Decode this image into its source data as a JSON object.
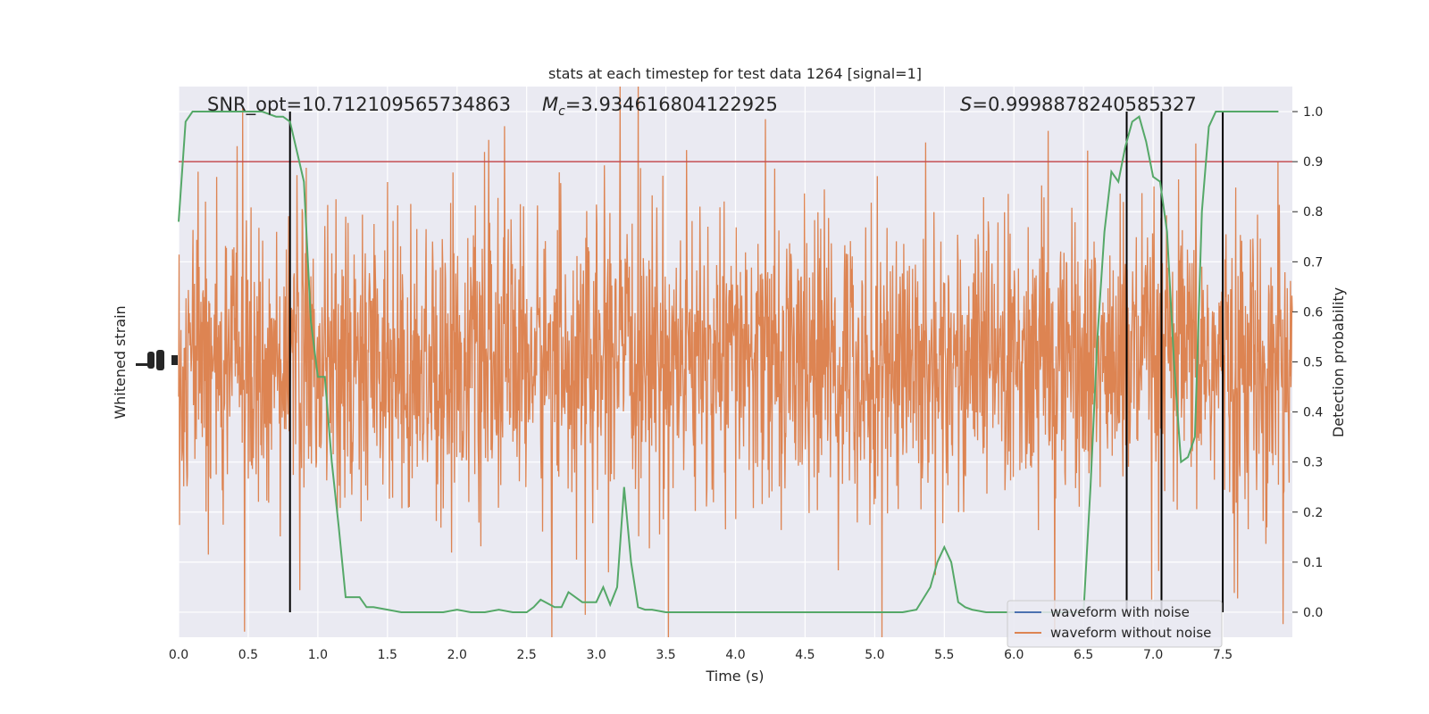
{
  "chart_data": {
    "type": "line",
    "title": "stats at each timestep for test data 1264 [signal=1]",
    "xlabel": "Time (s)",
    "ylabel_left": "Whitened strain",
    "ylabel_right": "Detection probability",
    "xlim": [
      0.0,
      8.0
    ],
    "ylim_right": [
      -0.05,
      1.05
    ],
    "x_tick_labels": [
      "0.0",
      "0.5",
      "1.0",
      "1.5",
      "2.0",
      "2.5",
      "3.0",
      "3.5",
      "4.0",
      "4.5",
      "5.0",
      "5.5",
      "6.0",
      "6.5",
      "7.0",
      "7.5"
    ],
    "y_right_tick_labels": [
      "0.0",
      "0.1",
      "0.2",
      "0.3",
      "0.4",
      "0.5",
      "0.6",
      "0.7",
      "0.8",
      "0.9",
      "1.0"
    ],
    "grid": true,
    "legend_position": "bottom-right",
    "annotations": {
      "snr": "SNR_opt=10.712109565734863",
      "mc_symbol": "M",
      "mc_subscript": "c",
      "mc_value": "=3.934616804122925",
      "s_symbol": "S",
      "s_value": "=0.9998878240585327"
    },
    "threshold": 0.9,
    "vertical_markers": [
      0.8,
      6.81,
      7.06,
      7.5
    ],
    "series": [
      {
        "name": "waveform with noise",
        "color": "#4c72b0",
        "kind": "strain"
      },
      {
        "name": "waveform without noise",
        "color": "#dd8452",
        "kind": "strain"
      },
      {
        "name": "",
        "color": "#55a868",
        "kind": "probability",
        "x": [
          0.0,
          0.05,
          0.1,
          0.15,
          0.2,
          0.3,
          0.4,
          0.5,
          0.6,
          0.7,
          0.75,
          0.8,
          0.85,
          0.9,
          0.95,
          1.0,
          1.05,
          1.1,
          1.15,
          1.2,
          1.25,
          1.3,
          1.35,
          1.4,
          1.5,
          1.6,
          1.7,
          1.8,
          1.9,
          2.0,
          2.1,
          2.2,
          2.3,
          2.4,
          2.5,
          2.55,
          2.6,
          2.7,
          2.75,
          2.8,
          2.9,
          3.0,
          3.05,
          3.1,
          3.15,
          3.2,
          3.25,
          3.3,
          3.35,
          3.4,
          3.5,
          3.6,
          3.7,
          3.8,
          4.0,
          4.2,
          4.4,
          4.6,
          4.8,
          5.0,
          5.2,
          5.3,
          5.4,
          5.45,
          5.5,
          5.55,
          5.6,
          5.65,
          5.7,
          5.8,
          6.0,
          6.2,
          6.4,
          6.5,
          6.55,
          6.6,
          6.65,
          6.7,
          6.75,
          6.8,
          6.85,
          6.9,
          6.95,
          7.0,
          7.05,
          7.1,
          7.15,
          7.2,
          7.25,
          7.3,
          7.35,
          7.4,
          7.45,
          7.5,
          7.55,
          7.6,
          7.7,
          7.8,
          7.9
        ],
        "y": [
          0.78,
          0.98,
          1.0,
          1.0,
          1.0,
          1.0,
          1.0,
          1.0,
          1.0,
          0.99,
          0.99,
          0.98,
          0.92,
          0.86,
          0.58,
          0.47,
          0.47,
          0.3,
          0.17,
          0.03,
          0.03,
          0.03,
          0.01,
          0.01,
          0.005,
          0.0,
          0.0,
          0.0,
          0.0,
          0.005,
          0.0,
          0.0,
          0.005,
          0.0,
          0.0,
          0.01,
          0.025,
          0.01,
          0.01,
          0.04,
          0.02,
          0.02,
          0.05,
          0.015,
          0.05,
          0.25,
          0.1,
          0.01,
          0.005,
          0.005,
          0.0,
          0.0,
          0.0,
          0.0,
          0.0,
          0.0,
          0.0,
          0.0,
          0.0,
          0.0,
          0.0,
          0.005,
          0.05,
          0.1,
          0.13,
          0.1,
          0.02,
          0.01,
          0.005,
          0.0,
          0.0,
          0.0,
          0.0,
          0.0,
          0.25,
          0.55,
          0.76,
          0.88,
          0.86,
          0.93,
          0.98,
          0.99,
          0.94,
          0.87,
          0.86,
          0.76,
          0.5,
          0.3,
          0.31,
          0.35,
          0.8,
          0.97,
          1.0,
          1.0,
          1.0,
          1.0,
          1.0,
          1.0,
          1.0
        ]
      }
    ],
    "colors": {
      "background": "#eaeaf2",
      "grid": "#ffffff",
      "threshold_line": "#c44e52",
      "markers": "#000000"
    }
  }
}
